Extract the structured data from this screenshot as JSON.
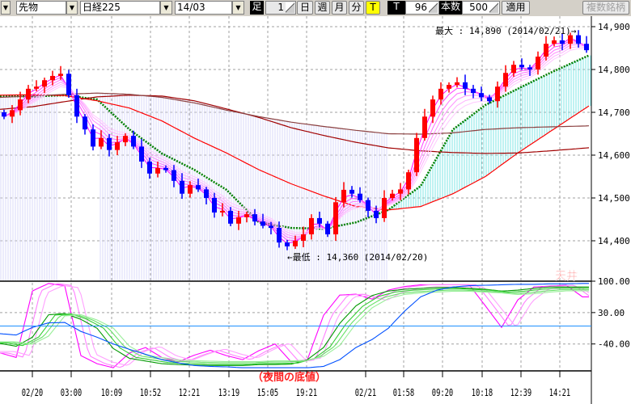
{
  "toolbar": {
    "instrument_type": "先物",
    "index": "日経225",
    "contract": "14/03",
    "bar_label": "足",
    "bar_count_value": "1",
    "period_buttons": [
      "日",
      "週",
      "月",
      "分",
      "T"
    ],
    "active_period": "T",
    "tick_label": "T",
    "tick_value": "96",
    "count_label": "本数",
    "count_value": "500",
    "apply_label": "適用",
    "multi_label": "複数銘柄"
  },
  "chart_data": [
    {
      "type": "candlestick",
      "ylim": [
        14340,
        14925
      ],
      "y_ticks": [
        "14,900",
        "14,800",
        "14,700",
        "14,600",
        "14,500",
        "14,400"
      ],
      "y_tick_values": [
        14900,
        14800,
        14700,
        14600,
        14500,
        14400
      ],
      "x_ticks": [
        "02/20",
        "03:00",
        "10:09",
        "10:52",
        "12:21",
        "13:19",
        "15:05",
        "19:21",
        "02/21",
        "01:58",
        "09:20",
        "10:18",
        "12:39",
        "14:21"
      ],
      "grid": true,
      "closes": [
        14690,
        14705,
        14730,
        14755,
        14760,
        14775,
        14785,
        14790,
        14740,
        14690,
        14660,
        14620,
        14640,
        14612,
        14630,
        14645,
        14620,
        14585,
        14557,
        14570,
        14565,
        14540,
        14510,
        14530,
        14520,
        14500,
        14466,
        14470,
        14440,
        14455,
        14462,
        14445,
        14435,
        14430,
        14396,
        14387,
        14400,
        14415,
        14453,
        14440,
        14415,
        14490,
        14519,
        14510,
        14495,
        14470,
        14453,
        14500,
        14510,
        14520,
        14560,
        14640,
        14690,
        14730,
        14755,
        14764,
        14770,
        14755,
        14745,
        14735,
        14726,
        14760,
        14792,
        14811,
        14805,
        14800,
        14830,
        14860,
        14868,
        14860,
        14880,
        14860,
        14845
      ],
      "moving_averages": [
        {
          "color": "#008000",
          "style": "dotted",
          "values": [
            14738,
            14737,
            14740,
            14730,
            14660,
            14604,
            14566,
            14519,
            14443,
            14430,
            14428,
            14443,
            14472,
            14528,
            14660,
            14717,
            14755,
            14792,
            14826
          ]
        },
        {
          "color": "#ff0000",
          "values": [
            14740,
            14741,
            14739,
            14727,
            14710,
            14680,
            14640,
            14605,
            14566,
            14533,
            14505,
            14480,
            14472,
            14480,
            14510,
            14550,
            14605,
            14655,
            14705
          ]
        },
        {
          "color": "#a00000",
          "values": [
            14707,
            14713,
            14725,
            14736,
            14740,
            14738,
            14727,
            14708,
            14688,
            14664,
            14646,
            14630,
            14617,
            14610,
            14606,
            14604,
            14605,
            14610,
            14616
          ]
        },
        {
          "color": "#8b4040",
          "values": [
            14735,
            14738,
            14742,
            14745,
            14742,
            14735,
            14722,
            14705,
            14690,
            14677,
            14667,
            14658,
            14650,
            14649,
            14652,
            14660,
            14664,
            14666,
            14668
          ]
        }
      ],
      "up_color": "#ff0000",
      "down_color": "#0000ff",
      "ribbon_color": "#ff00ff",
      "bull_fill": "#7fe6e6",
      "bear_fill": "#d8d8f8",
      "annotations": {
        "max": "最大 : 14,890 (2014/02/21)→",
        "min": "←最低 : 14,360 (2014/02/20)"
      }
    },
    {
      "type": "line",
      "ylim": [
        -100,
        100
      ],
      "y_ticks": [
        "100.00",
        "30.00",
        "-40.00"
      ],
      "y_tick_values": [
        100,
        30,
        -40
      ],
      "zero_line": 0,
      "series": [
        {
          "color": "#ff00ff",
          "values": [
            -60,
            -70,
            78,
            95,
            90,
            -66,
            -84,
            -93,
            -60,
            -48,
            -70,
            -80,
            -65,
            -54,
            -66,
            -75,
            -55,
            -40,
            -80,
            -75,
            24,
            69,
            71,
            60,
            80,
            88,
            92,
            92,
            92,
            92,
            45,
            -3,
            58,
            87,
            89,
            91,
            65
          ]
        },
        {
          "color": "#009900",
          "values": [
            -39,
            -45,
            -25,
            25,
            28,
            15,
            -5,
            -50,
            -72,
            -78,
            -84,
            -86,
            -87,
            -88,
            -88,
            -88,
            -86,
            -86,
            -85,
            -75,
            -48,
            6,
            45,
            68,
            78,
            82,
            84,
            86,
            86,
            84,
            82,
            78,
            80,
            84,
            87,
            87,
            87
          ]
        },
        {
          "color": "#0050ff",
          "values": [
            -17,
            -20,
            -3,
            7,
            8,
            -12,
            -25,
            -40,
            -52,
            -63,
            -75,
            -82,
            -88,
            -90,
            -91,
            -93,
            -93,
            -93,
            -93,
            -93,
            -90,
            -75,
            -48,
            -30,
            -5,
            33,
            65,
            80,
            87,
            90,
            91,
            92,
            93,
            93,
            94,
            94,
            95
          ]
        }
      ],
      "annotations": {
        "top": "天井",
        "bottom": "（夜間の底値）"
      }
    }
  ]
}
